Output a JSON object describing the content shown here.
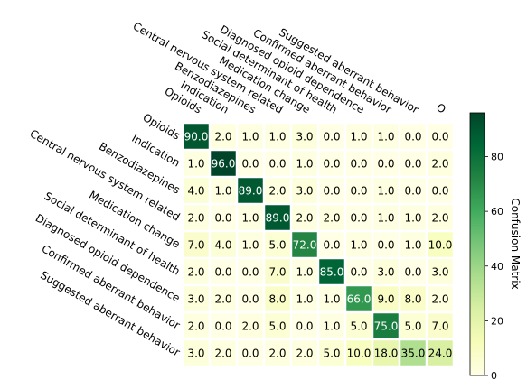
{
  "chart_data": {
    "type": "heatmap",
    "title": "",
    "categories": [
      "Opioids",
      "Indication",
      "Benzodiazepines",
      "Central nervous system related",
      "Medication change",
      "Social determinant of health",
      "Diagnosed opioid dependence",
      "Confirmed aberrant behavior",
      "Suggested aberrant behavior",
      "O"
    ],
    "row_labels": [
      "Opioids",
      "Indication",
      "Benzodiazepines",
      "Central nervous system related",
      "Medication change",
      "Social determinant of health",
      "Diagnosed opioid dependence",
      "Confirmed aberrant behavior",
      "Suggested aberrant behavior"
    ],
    "values": [
      [
        90.0,
        2.0,
        1.0,
        1.0,
        3.0,
        0.0,
        1.0,
        1.0,
        0.0,
        0.0
      ],
      [
        1.0,
        96.0,
        0.0,
        0.0,
        1.0,
        0.0,
        0.0,
        0.0,
        0.0,
        2.0
      ],
      [
        4.0,
        1.0,
        89.0,
        2.0,
        3.0,
        0.0,
        0.0,
        1.0,
        0.0,
        0.0
      ],
      [
        2.0,
        0.0,
        1.0,
        89.0,
        2.0,
        2.0,
        0.0,
        1.0,
        1.0,
        2.0
      ],
      [
        7.0,
        4.0,
        1.0,
        5.0,
        72.0,
        0.0,
        1.0,
        0.0,
        1.0,
        10.0
      ],
      [
        2.0,
        0.0,
        0.0,
        7.0,
        1.0,
        85.0,
        0.0,
        3.0,
        0.0,
        3.0
      ],
      [
        3.0,
        2.0,
        0.0,
        8.0,
        1.0,
        1.0,
        66.0,
        9.0,
        8.0,
        2.0
      ],
      [
        2.0,
        0.0,
        2.0,
        5.0,
        0.0,
        1.0,
        5.0,
        75.0,
        5.0,
        7.0
      ],
      [
        3.0,
        2.0,
        0.0,
        2.0,
        2.0,
        5.0,
        10.0,
        18.0,
        35.0,
        24.0
      ]
    ],
    "colorbar": {
      "label": "Confusion Matrix",
      "range": [
        0,
        96
      ],
      "ticks": [
        0,
        20,
        40,
        60,
        80
      ],
      "colormap": "YlGn"
    },
    "grid": false,
    "legend": "right"
  }
}
